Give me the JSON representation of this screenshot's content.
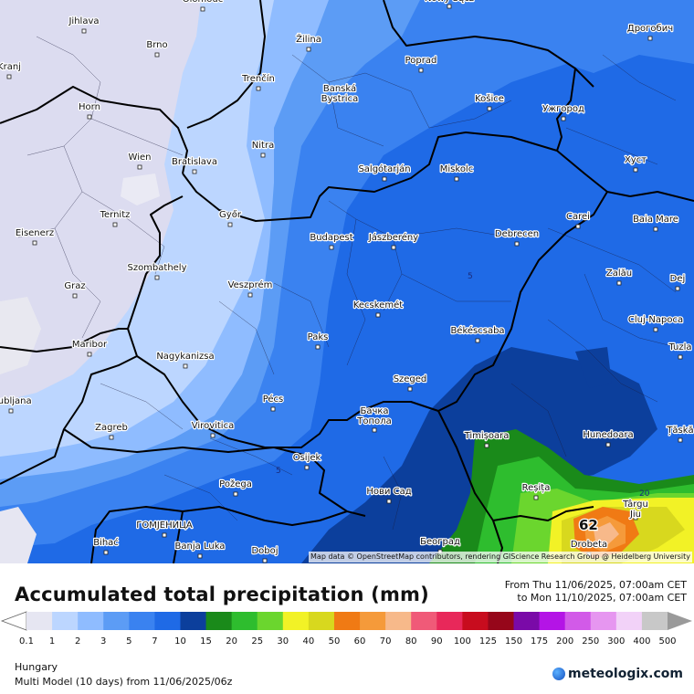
{
  "map": {
    "title": "Accumulated total precipitation (mm)",
    "period_from": "From Thu 11/06/2025, 07:00am CET",
    "period_to": "to Mon 11/10/2025, 07:00am CET",
    "region": "Hungary",
    "model": "Multi Model (10 days)  from  11/06/2025/06z",
    "attribution": "Map data © OpenStreetMap contributors, rendering GIScience Research Group @ Heidelberg University",
    "brand": "meteologix.com",
    "max_label": "62",
    "contour_labels": [
      "5",
      "5",
      "5",
      "20"
    ],
    "cities": [
      {
        "name": "Olomouc"
      },
      {
        "name": "Nowy Sącz"
      },
      {
        "name": "Дрогобич"
      },
      {
        "name": "Jihlava"
      },
      {
        "name": "Brno"
      },
      {
        "name": "Žilina"
      },
      {
        "name": "Poprad"
      },
      {
        "name": "Trenčín"
      },
      {
        "name": "Banská Bystrica"
      },
      {
        "name": "Košice"
      },
      {
        "name": "Ужгород"
      },
      {
        "name": "Horn"
      },
      {
        "name": "Nitra"
      },
      {
        "name": "Wien"
      },
      {
        "name": "Bratislava"
      },
      {
        "name": "Salgótarján"
      },
      {
        "name": "Miskolc"
      },
      {
        "name": "Хуст"
      },
      {
        "name": "Ternitz"
      },
      {
        "name": "Győr"
      },
      {
        "name": "Carei"
      },
      {
        "name": "Baia Mare"
      },
      {
        "name": "Eisenerz"
      },
      {
        "name": "Budapest"
      },
      {
        "name": "Jászberény"
      },
      {
        "name": "Debrecen"
      },
      {
        "name": "Szombathely"
      },
      {
        "name": "Zalău"
      },
      {
        "name": "Graz"
      },
      {
        "name": "Veszprém"
      },
      {
        "name": "Dej"
      },
      {
        "name": "Kecskemét"
      },
      {
        "name": "Cluj-Napoca"
      },
      {
        "name": "Paks"
      },
      {
        "name": "Békéscsaba"
      },
      {
        "name": "Maribor"
      },
      {
        "name": "Nagykanizsa"
      },
      {
        "name": "Szeged"
      },
      {
        "name": "Pécs"
      },
      {
        "name": "Бачка Топола"
      },
      {
        "name": "Timișoara"
      },
      {
        "name": "Zagreb"
      },
      {
        "name": "Virovitica"
      },
      {
        "name": "Hunedoara"
      },
      {
        "name": "Osijek"
      },
      {
        "name": "Požega"
      },
      {
        "name": "Нови Сад"
      },
      {
        "name": "Reșița"
      },
      {
        "name": "Târgu Jiu"
      },
      {
        "name": "ГОМЈЕНИЦА"
      },
      {
        "name": "Bihać"
      },
      {
        "name": "Banja Luka"
      },
      {
        "name": "Doboj"
      },
      {
        "name": "Београд"
      },
      {
        "name": "Drobeta"
      },
      {
        "name": "Ljubljana"
      },
      {
        "name": "Kranj"
      },
      {
        "name": "Tuzla"
      },
      {
        "name": "Țăskă"
      }
    ]
  },
  "legend": {
    "values": [
      "0.1",
      "1",
      "2",
      "3",
      "5",
      "7",
      "10",
      "15",
      "20",
      "25",
      "30",
      "40",
      "50",
      "60",
      "70",
      "80",
      "90",
      "100",
      "125",
      "150",
      "175",
      "200",
      "250",
      "300",
      "400",
      "500"
    ],
    "colors": [
      "#e6e6f2",
      "#bcd6ff",
      "#8fbcff",
      "#5c9cf5",
      "#3a82f0",
      "#1f6ae6",
      "#0c3f9c",
      "#1a8a1a",
      "#2ebd2e",
      "#6bd62e",
      "#f2f226",
      "#d8d81e",
      "#f07a14",
      "#f59a3a",
      "#f7b98a",
      "#f05a78",
      "#e8285a",
      "#c80c1e",
      "#96061a",
      "#7a0aa8",
      "#b414e6",
      "#d25ae8",
      "#e696f0",
      "#f2d2f8",
      "#c8c8c8"
    ]
  }
}
